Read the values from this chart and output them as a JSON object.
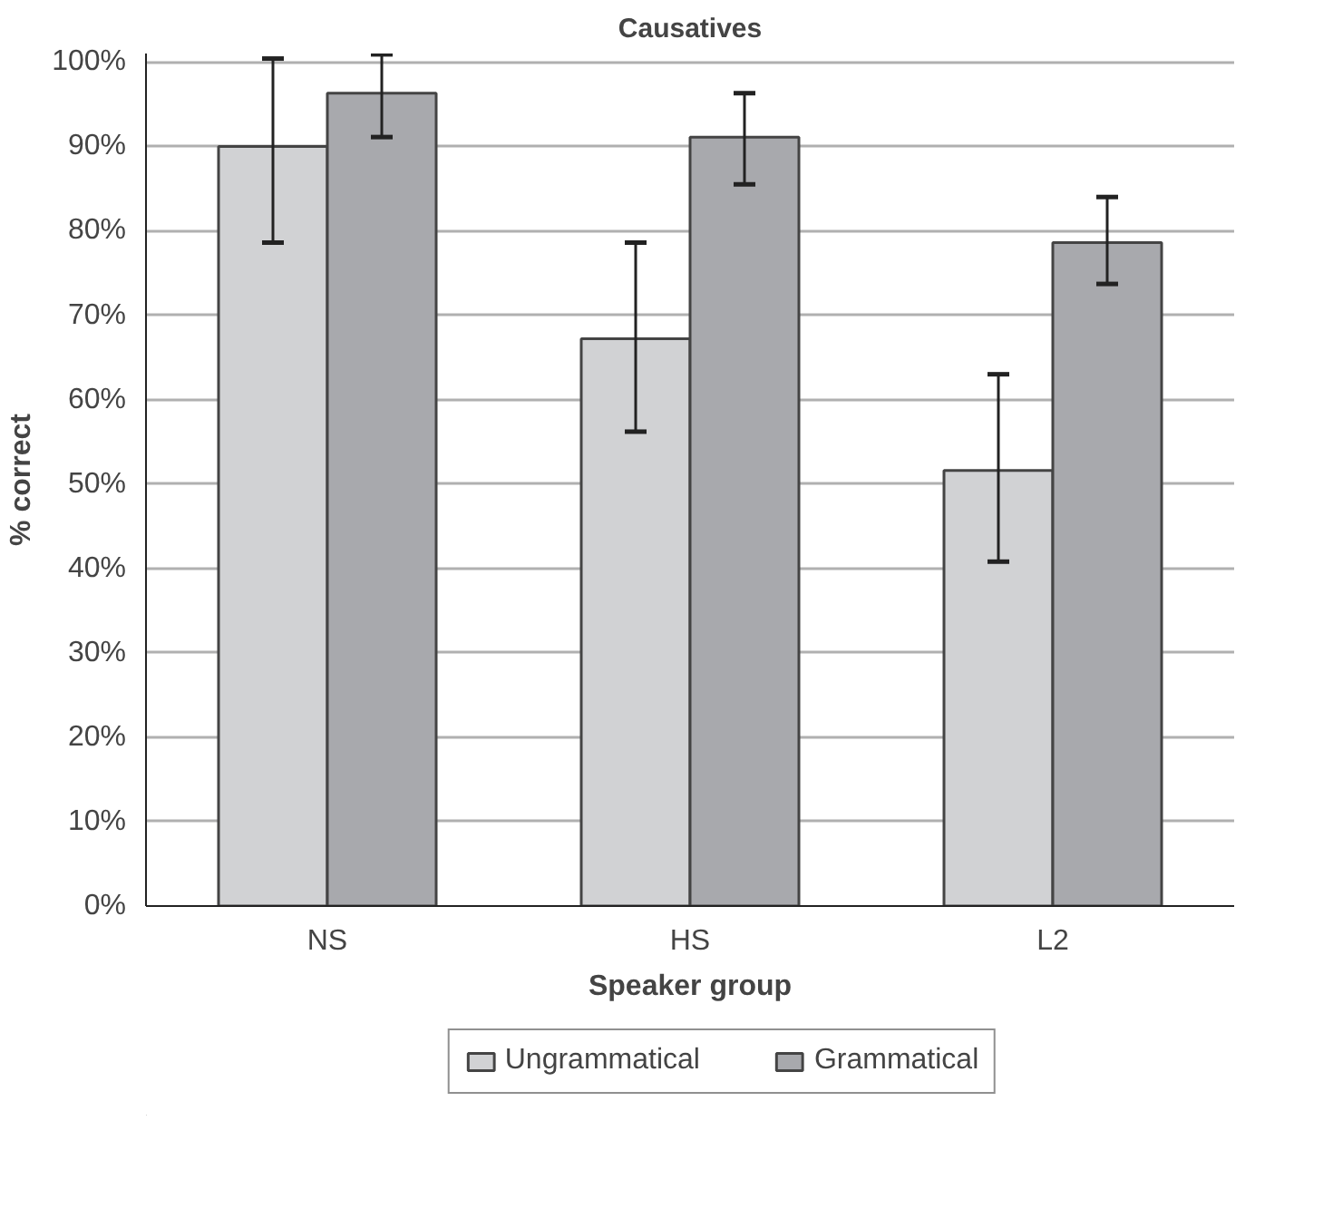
{
  "chart_data": {
    "type": "bar",
    "title": "Causatives",
    "xlabel": "Speaker group",
    "ylabel": "% correct",
    "categories": [
      "NS",
      "HS",
      "L2"
    ],
    "series": [
      {
        "name": "Ungrammatical",
        "color": "#d1d2d4",
        "values": [
          90,
          67.2,
          51.6
        ],
        "errors": [
          [
            78.6,
            100.4
          ],
          [
            56.2,
            78.6
          ],
          [
            40.8,
            63.0
          ]
        ]
      },
      {
        "name": "Grammatical",
        "color": "#a8a9ad",
        "values": [
          96.3,
          91.1,
          78.6
        ],
        "errors": [
          [
            91.1,
            100.9
          ],
          [
            85.5,
            96.3
          ],
          [
            73.7,
            84.0
          ]
        ]
      }
    ],
    "ylim": [
      0,
      101
    ],
    "yticks": [
      {
        "value": 0,
        "label": "0%"
      },
      {
        "value": 10,
        "label": "10%"
      },
      {
        "value": 20,
        "label": "20%"
      },
      {
        "value": 30,
        "label": "30%"
      },
      {
        "value": 40,
        "label": "40%"
      },
      {
        "value": 50,
        "label": "50%"
      },
      {
        "value": 60,
        "label": "60%"
      },
      {
        "value": 70,
        "label": "70%"
      },
      {
        "value": 80,
        "label": "80%"
      },
      {
        "value": 90,
        "label": "90%"
      },
      {
        "value": 100,
        "label": "100%"
      }
    ],
    "grid": "y",
    "legend": "bottom"
  }
}
